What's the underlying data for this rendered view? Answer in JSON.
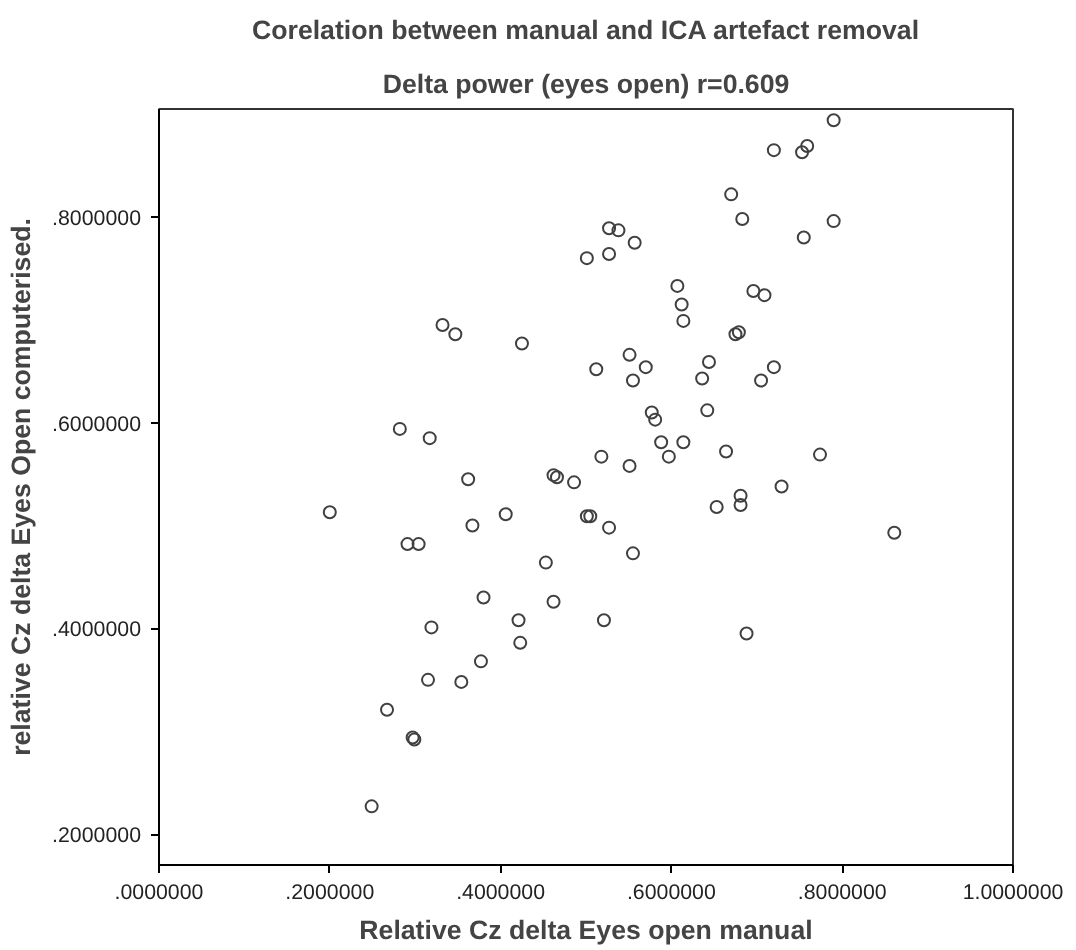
{
  "chart_data": {
    "type": "scatter",
    "title": "Corelation between manual and ICA artefact removal",
    "subtitle": "Delta power (eyes open) r=0.609",
    "xlabel": "Relative Cz delta Eyes open manual",
    "ylabel": "relative Cz delta Eyes Open computerised.",
    "xlim": [
      0,
      1.0
    ],
    "ylim": [
      0.17,
      0.905
    ],
    "xticks": [
      {
        "value": 0,
        "label": ".0000000"
      },
      {
        "value": 0.2,
        "label": ".2000000"
      },
      {
        "value": 0.4,
        "label": ".4000000"
      },
      {
        "value": 0.6,
        "label": ".6000000"
      },
      {
        "value": 0.8,
        "label": ".8000000"
      },
      {
        "value": 1.0,
        "label": "1.0000000"
      }
    ],
    "yticks": [
      {
        "value": 0.2,
        "label": ".2000000"
      },
      {
        "value": 0.4,
        "label": ".4000000"
      },
      {
        "value": 0.6,
        "label": ".6000000"
      },
      {
        "value": 0.8,
        "label": ".8000000"
      }
    ],
    "grid": false,
    "marker": "circle",
    "series": [
      {
        "color": "#404040",
        "x": [
          0.2,
          0.291,
          0.304,
          0.249,
          0.267,
          0.297,
          0.299,
          0.315,
          0.319,
          0.354,
          0.362,
          0.367,
          0.377,
          0.38,
          0.406,
          0.421,
          0.423,
          0.453,
          0.462,
          0.462,
          0.466,
          0.317,
          0.282,
          0.332,
          0.347,
          0.425,
          0.79,
          0.72,
          0.753,
          0.759,
          0.67,
          0.683,
          0.755,
          0.79,
          0.527,
          0.538,
          0.557,
          0.501,
          0.527,
          0.607,
          0.612,
          0.614,
          0.696,
          0.709,
          0.512,
          0.551,
          0.57,
          0.555,
          0.644,
          0.636,
          0.675,
          0.679,
          0.705,
          0.72,
          0.577,
          0.581,
          0.642,
          0.588,
          0.614,
          0.597,
          0.518,
          0.551,
          0.664,
          0.774,
          0.486,
          0.501,
          0.505,
          0.527,
          0.555,
          0.521,
          0.653,
          0.681,
          0.681,
          0.729,
          0.688,
          0.861
        ],
        "values": [
          0.513,
          0.482,
          0.482,
          0.227,
          0.321,
          0.294,
          0.292,
          0.35,
          0.401,
          0.348,
          0.545,
          0.5,
          0.368,
          0.43,
          0.511,
          0.408,
          0.386,
          0.464,
          0.426,
          0.549,
          0.547,
          0.585,
          0.594,
          0.695,
          0.686,
          0.677,
          0.894,
          0.865,
          0.863,
          0.869,
          0.822,
          0.798,
          0.78,
          0.796,
          0.789,
          0.787,
          0.775,
          0.76,
          0.764,
          0.733,
          0.715,
          0.699,
          0.728,
          0.724,
          0.652,
          0.666,
          0.654,
          0.641,
          0.659,
          0.643,
          0.686,
          0.688,
          0.641,
          0.654,
          0.61,
          0.603,
          0.612,
          0.581,
          0.581,
          0.567,
          0.567,
          0.558,
          0.572,
          0.569,
          0.542,
          0.509,
          0.509,
          0.498,
          0.473,
          0.408,
          0.518,
          0.529,
          0.52,
          0.538,
          0.395,
          0.493
        ]
      }
    ]
  }
}
